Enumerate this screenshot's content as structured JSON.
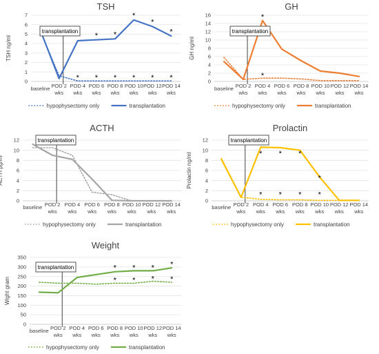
{
  "categories": [
    "baseline",
    "POD 2 wks",
    "POD 4 wks",
    "POD 6 wks",
    "POD 8 wks",
    "POD 10 wks",
    "POD 12 wks",
    "POD 14 wks"
  ],
  "chart_data": [
    {
      "type": "line",
      "title": "TSH",
      "ylabel": "TSH ng/ml",
      "ylim": [
        0,
        7
      ],
      "yticks": [
        0,
        1,
        2,
        3,
        4,
        5,
        6,
        7
      ],
      "color": "#4472C4",
      "annotation": "transplantation",
      "series": [
        {
          "name": "hypophysectomy only",
          "style": "dotted",
          "values": [
            5.3,
            0.6,
            0.05,
            0.05,
            0.05,
            0.05,
            0.05,
            0.05
          ]
        },
        {
          "name": "transplantation",
          "style": "solid",
          "values": [
            5.4,
            0.3,
            4.3,
            4.4,
            4.5,
            6.5,
            5.8,
            4.8
          ]
        }
      ],
      "stars": [
        {
          "x": 2,
          "y": 4.9
        },
        {
          "x": 3,
          "y": 4.9
        },
        {
          "x": 4,
          "y": 5.0
        },
        {
          "x": 5,
          "y": 7.0
        },
        {
          "x": 6,
          "y": 6.3
        },
        {
          "x": 7,
          "y": 5.3
        },
        {
          "x": 2,
          "y": 0.45
        },
        {
          "x": 3,
          "y": 0.45
        },
        {
          "x": 4,
          "y": 0.45
        },
        {
          "x": 5,
          "y": 0.45
        },
        {
          "x": 6,
          "y": 0.45
        },
        {
          "x": 7,
          "y": 0.45
        }
      ]
    },
    {
      "type": "line",
      "title": "GH",
      "ylabel": "GH ng/ml",
      "ylim": [
        0,
        16
      ],
      "yticks": [
        0,
        2,
        4,
        6,
        8,
        10,
        12,
        14,
        16
      ],
      "color": "#ED7D31",
      "annotation": "transplantation",
      "series": [
        {
          "name": "hypophysectomy only",
          "style": "dotted",
          "values": [
            5.8,
            0.5,
            0.8,
            0.8,
            0.6,
            0.2,
            0.2,
            0.2
          ]
        },
        {
          "name": "transplantation",
          "style": "solid",
          "values": [
            4.8,
            0.5,
            14.7,
            7.8,
            5.0,
            2.5,
            2.0,
            1.2
          ]
        }
      ],
      "stars": [
        {
          "x": 2,
          "y": 15.7
        },
        {
          "x": 2,
          "y": 1.5
        }
      ]
    },
    {
      "type": "line",
      "title": "ACTH",
      "ylabel": "ACTH pg/ml",
      "ylim": [
        0,
        12
      ],
      "yticks": [
        0,
        2,
        4,
        6,
        8,
        10,
        12
      ],
      "color": "#A5A5A5",
      "annotation": "transplantation",
      "series": [
        {
          "name": "hypophysectomy only",
          "style": "dotted",
          "values": [
            10.5,
            10.5,
            9.0,
            1.7,
            1.2,
            0,
            0,
            0
          ]
        },
        {
          "name": "transplantation",
          "style": "solid",
          "values": [
            11.2,
            9.0,
            8.2,
            4.3,
            0.1,
            0,
            0,
            0
          ]
        }
      ],
      "stars": []
    },
    {
      "type": "line",
      "title": "Prolactin",
      "ylabel": "Prolactin ng/ml",
      "ylim": [
        0,
        12
      ],
      "yticks": [
        0,
        2,
        4,
        6,
        8,
        10,
        12
      ],
      "color": "#FFC000",
      "annotation": "transplantation",
      "series": [
        {
          "name": "hypophysectomy only",
          "style": "dotted",
          "values": [
            8.4,
            0.7,
            0.3,
            0.2,
            0.2,
            0.1,
            0.1,
            0.1
          ]
        },
        {
          "name": "transplantation",
          "style": "solid",
          "values": [
            8.2,
            0.7,
            10.6,
            10.5,
            10.0,
            4.7,
            0.1,
            0.1
          ]
        }
      ],
      "stars": [
        {
          "x": 2,
          "y": 9.4
        },
        {
          "x": 3,
          "y": 9.4
        },
        {
          "x": 4,
          "y": 9.4
        },
        {
          "x": 5,
          "y": 4.6
        },
        {
          "x": 2,
          "y": 1.3
        },
        {
          "x": 3,
          "y": 1.3
        },
        {
          "x": 4,
          "y": 1.3
        },
        {
          "x": 5,
          "y": 1.3
        }
      ]
    },
    {
      "type": "line",
      "title": "Weight",
      "ylabel": "Wight gram",
      "ylim": [
        0,
        350
      ],
      "yticks": [
        0,
        50,
        100,
        150,
        200,
        250,
        300,
        350
      ],
      "color": "#70AD47",
      "annotation": "transplantation",
      "series": [
        {
          "name": "hypophysectomy only",
          "style": "dotted",
          "values": [
            220,
            215,
            215,
            210,
            215,
            215,
            225,
            220
          ]
        },
        {
          "name": "transplantation",
          "style": "solid",
          "values": [
            168,
            165,
            245,
            260,
            275,
            280,
            280,
            295
          ]
        }
      ],
      "stars": [
        {
          "x": 4,
          "y": 297
        },
        {
          "x": 5,
          "y": 297
        },
        {
          "x": 6,
          "y": 297
        },
        {
          "x": 7,
          "y": 315
        },
        {
          "x": 4,
          "y": 232
        },
        {
          "x": 5,
          "y": 232
        },
        {
          "x": 6,
          "y": 240
        },
        {
          "x": 7,
          "y": 238
        }
      ]
    }
  ]
}
